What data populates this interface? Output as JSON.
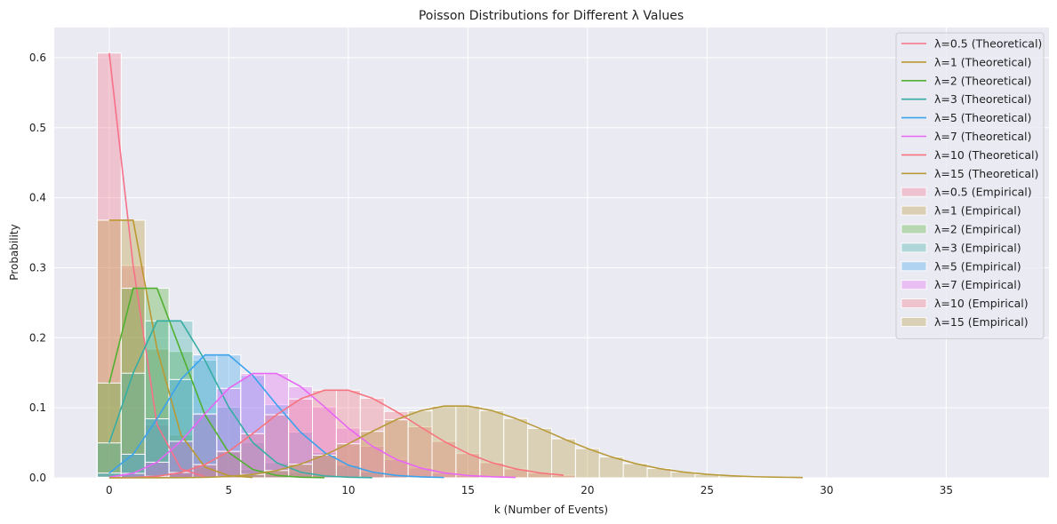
{
  "chart_data": {
    "type": "bar",
    "title": "Poisson Distributions for Different λ Values",
    "xlabel": "k (Number of Events)",
    "ylabel": "Probability",
    "xlim": [
      -2.3,
      39.3
    ],
    "ylim": [
      0,
      0.643
    ],
    "xticks": [
      0,
      5,
      10,
      15,
      20,
      25,
      30,
      35
    ],
    "yticks": [
      0.0,
      0.1,
      0.2,
      0.3,
      0.4,
      0.5,
      0.6
    ],
    "grid": true,
    "legend_position": "top-right",
    "series": [
      {
        "lambda": 0.5,
        "color": "#f77189",
        "theoretical_name": "λ=0.5 (Theoretical)",
        "empirical_name": "λ=0.5 (Empirical)",
        "k_max": 4
      },
      {
        "lambda": 1,
        "color": "#bb9832",
        "theoretical_name": "λ=1 (Theoretical)",
        "empirical_name": "λ=1 (Empirical)",
        "k_max": 6
      },
      {
        "lambda": 2,
        "color": "#50b131",
        "theoretical_name": "λ=2 (Theoretical)",
        "empirical_name": "λ=2 (Empirical)",
        "k_max": 9
      },
      {
        "lambda": 3,
        "color": "#36ada4",
        "theoretical_name": "λ=3 (Theoretical)",
        "empirical_name": "λ=3 (Empirical)",
        "k_max": 11
      },
      {
        "lambda": 5,
        "color": "#3ba3ec",
        "theoretical_name": "λ=5 (Theoretical)",
        "empirical_name": "λ=5 (Empirical)",
        "k_max": 14
      },
      {
        "lambda": 7,
        "color": "#e866f4",
        "theoretical_name": "λ=7 (Theoretical)",
        "empirical_name": "λ=7 (Empirical)",
        "k_max": 17
      },
      {
        "lambda": 10,
        "color": "#f7737f",
        "theoretical_name": "λ=10 (Theoretical)",
        "empirical_name": "λ=10 (Empirical)",
        "k_max": 19
      },
      {
        "lambda": 15,
        "color": "#b99a3b",
        "theoretical_name": "λ=15 (Theoretical)",
        "empirical_name": "λ=15 (Empirical)",
        "k_max": 29
      }
    ]
  }
}
